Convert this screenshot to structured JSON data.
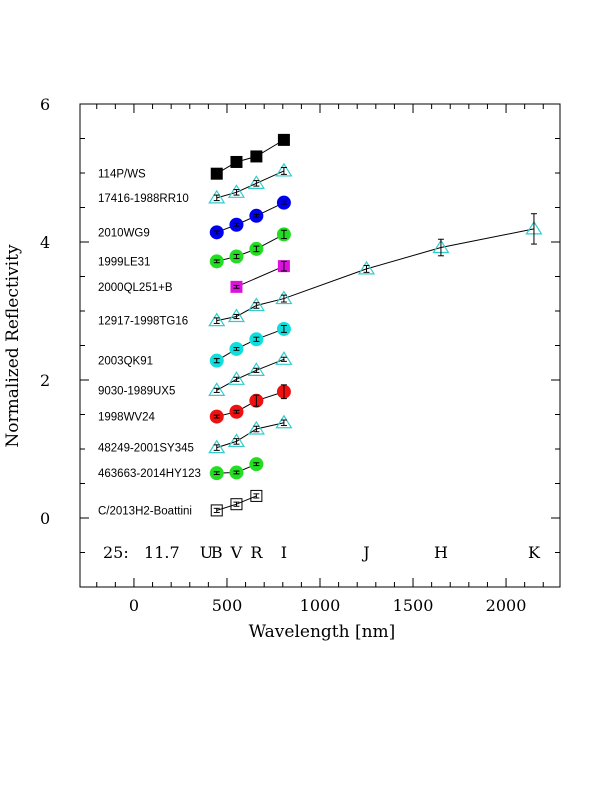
{
  "chart_data": {
    "type": "scatter",
    "xlabel": "Wavelength [nm]",
    "ylabel": "Normalized Reflectivity",
    "xlim": [
      -290,
      2290
    ],
    "ylim": [
      -1,
      6
    ],
    "x_ticks": [
      0,
      500,
      1000,
      1500,
      2000
    ],
    "y_ticks": [
      0,
      2,
      4,
      6
    ],
    "grid": false,
    "band_labels": [
      "U",
      "B",
      "V",
      "R",
      "I",
      "J",
      "H",
      "K"
    ],
    "band_label_x": [
      390,
      445,
      551,
      658,
      806,
      1250,
      1650,
      2150
    ],
    "footer_note": "25:   11.7",
    "series": [
      {
        "name": "114P/WS",
        "marker": "square-filled",
        "color": "#000000",
        "x": [
          445,
          551,
          658,
          806
        ],
        "y": [
          4.99,
          5.16,
          5.24,
          5.48
        ],
        "err": [
          0,
          0,
          0,
          0
        ]
      },
      {
        "name": "17416-1988RR10",
        "marker": "triangle-open",
        "color": "#33cccc",
        "x": [
          445,
          551,
          658,
          806
        ],
        "y": [
          4.64,
          4.72,
          4.85,
          5.03
        ],
        "err": [
          0.04,
          0.04,
          0.04,
          0.05
        ]
      },
      {
        "name": "2010WG9",
        "marker": "circle-filled",
        "color": "#0000ee",
        "x": [
          445,
          551,
          658,
          806
        ],
        "y": [
          4.14,
          4.25,
          4.38,
          4.57
        ],
        "err": [
          0.02,
          0.02,
          0.02,
          0.02
        ]
      },
      {
        "name": "1999LE31",
        "marker": "circle-filled",
        "color": "#22dd22",
        "x": [
          445,
          551,
          658,
          806
        ],
        "y": [
          3.72,
          3.79,
          3.9,
          4.11
        ],
        "err": [
          0.02,
          0.03,
          0.04,
          0.06
        ]
      },
      {
        "name": "2000QL251+B",
        "marker": "square-filled",
        "color": "#dd11dd",
        "x": [
          551,
          806
        ],
        "y": [
          3.35,
          3.65
        ],
        "err": [
          0.02,
          0.07
        ]
      },
      {
        "name": "12917-1998TG16",
        "marker": "triangle-open",
        "color": "#33cccc",
        "x": [
          445,
          551,
          658,
          806,
          1250,
          1650,
          2150
        ],
        "y": [
          2.86,
          2.92,
          3.08,
          3.18,
          3.61,
          3.92,
          4.19
        ],
        "err": [
          0.04,
          0.03,
          0.04,
          0.05,
          0.05,
          0.12,
          0.22
        ]
      },
      {
        "name": "2003QK91",
        "marker": "circle-filled",
        "color": "#11dddd",
        "x": [
          445,
          551,
          658,
          806
        ],
        "y": [
          2.28,
          2.45,
          2.59,
          2.74
        ],
        "err": [
          0.03,
          0.02,
          0.03,
          0.05
        ]
      },
      {
        "name": "9030-1989UX5",
        "marker": "triangle-open",
        "color": "#33cccc",
        "x": [
          445,
          551,
          658,
          806
        ],
        "y": [
          1.85,
          2.01,
          2.14,
          2.3
        ],
        "err": [
          0.03,
          0.03,
          0.03,
          0.03
        ]
      },
      {
        "name": "1998WV24",
        "marker": "circle-filled",
        "color": "#ee1111",
        "x": [
          445,
          551,
          658,
          806
        ],
        "y": [
          1.47,
          1.54,
          1.7,
          1.83
        ],
        "err": [
          0.02,
          0.02,
          0.08,
          0.1
        ]
      },
      {
        "name": "48249-2001SY345",
        "marker": "triangle-open",
        "color": "#33cccc",
        "x": [
          445,
          551,
          658,
          806
        ],
        "y": [
          1.02,
          1.11,
          1.29,
          1.38
        ],
        "err": [
          0.04,
          0.04,
          0.04,
          0.04
        ]
      },
      {
        "name": "463663-2014HY123",
        "marker": "circle-filled",
        "color": "#22dd22",
        "x": [
          445,
          551,
          658
        ],
        "y": [
          0.65,
          0.66,
          0.78
        ],
        "err": [
          0.02,
          0.02,
          0.02
        ]
      },
      {
        "name": "C/2013H2-Boattini",
        "marker": "square-open",
        "color": "#000000",
        "x": [
          445,
          551,
          658
        ],
        "y": [
          0.11,
          0.2,
          0.32
        ],
        "err": [
          0.03,
          0.03,
          0.03
        ]
      }
    ]
  }
}
